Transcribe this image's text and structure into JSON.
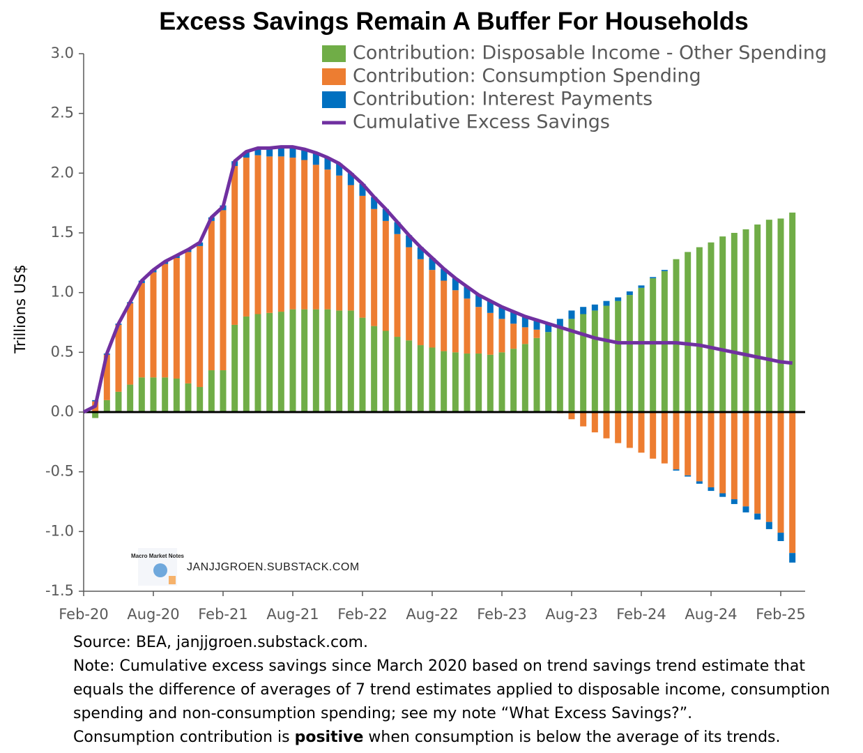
{
  "chart_data": {
    "type": "bar",
    "stacked": true,
    "title": "Excess Savings Remain A Buffer For Households",
    "y_label": "Trillions US$",
    "watermark": "JANJJGROEN.SUBSTACK.COM",
    "logo_text": "Macro Market Notes",
    "categories": [
      "Feb-20",
      null,
      null,
      null,
      null,
      null,
      "Aug-20",
      null,
      null,
      null,
      null,
      null,
      "Feb-21",
      null,
      null,
      null,
      null,
      null,
      "Aug-21",
      null,
      null,
      null,
      null,
      null,
      "Feb-22",
      null,
      null,
      null,
      null,
      null,
      "Aug-22",
      null,
      null,
      null,
      null,
      null,
      "Feb-23",
      null,
      null,
      null,
      null,
      null,
      "Aug-23",
      null,
      null,
      null,
      null,
      null,
      "Feb-24",
      null,
      null,
      null,
      null,
      null,
      "Aug-24",
      null,
      null,
      null,
      null,
      null,
      "Feb-25",
      null
    ],
    "series": [
      {
        "name": "Contribution: Disposable Income - Other Spending",
        "type": "bar",
        "color": "#70ad47",
        "values": [
          0,
          -0.05,
          0.1,
          0.17,
          0.23,
          0.29,
          0.29,
          0.29,
          0.28,
          0.24,
          0.21,
          0.35,
          0.35,
          0.73,
          0.8,
          0.82,
          0.83,
          0.84,
          0.86,
          0.86,
          0.86,
          0.86,
          0.85,
          0.85,
          0.79,
          0.72,
          0.68,
          0.63,
          0.6,
          0.56,
          0.54,
          0.51,
          0.5,
          0.49,
          0.49,
          0.48,
          0.5,
          0.53,
          0.57,
          0.62,
          0.67,
          0.71,
          0.78,
          0.82,
          0.85,
          0.89,
          0.93,
          0.98,
          1.04,
          1.12,
          1.18,
          1.28,
          1.34,
          1.38,
          1.42,
          1.47,
          1.5,
          1.53,
          1.57,
          1.61,
          1.62,
          1.67
        ]
      },
      {
        "name": "Contribution: Consumption Spending",
        "type": "bar",
        "color": "#ed7d31",
        "values": [
          0,
          0.09,
          0.38,
          0.56,
          0.68,
          0.79,
          0.88,
          0.95,
          1.01,
          1.1,
          1.18,
          1.25,
          1.34,
          1.33,
          1.33,
          1.33,
          1.31,
          1.3,
          1.27,
          1.25,
          1.21,
          1.17,
          1.13,
          1.05,
          1.02,
          0.98,
          0.92,
          0.86,
          0.78,
          0.72,
          0.65,
          0.59,
          0.52,
          0.46,
          0.39,
          0.35,
          0.28,
          0.21,
          0.14,
          0.07,
          0,
          -0.01,
          -0.06,
          -0.12,
          -0.17,
          -0.22,
          -0.26,
          -0.3,
          -0.34,
          -0.39,
          -0.43,
          -0.48,
          -0.53,
          -0.58,
          -0.63,
          -0.68,
          -0.73,
          -0.79,
          -0.85,
          -0.92,
          -1.01,
          -1.18
        ]
      },
      {
        "name": "Contribution: Interest Payments",
        "type": "bar",
        "color": "#0070c0",
        "values": [
          0,
          0.01,
          0.01,
          0.01,
          0.01,
          0.02,
          0.02,
          0.02,
          0.02,
          0.02,
          0.03,
          0.03,
          0.04,
          0.04,
          0.05,
          0.06,
          0.07,
          0.08,
          0.09,
          0.09,
          0.1,
          0.1,
          0.1,
          0.1,
          0.1,
          0.1,
          0.1,
          0.1,
          0.1,
          0.1,
          0.1,
          0.1,
          0.1,
          0.1,
          0.1,
          0.1,
          0.1,
          0.1,
          0.09,
          0.08,
          0.07,
          0.07,
          0.07,
          0.06,
          0.05,
          0.04,
          0.03,
          0.03,
          0.02,
          0.01,
          0.01,
          -0.01,
          -0.01,
          -0.02,
          -0.03,
          -0.03,
          -0.04,
          -0.05,
          -0.05,
          -0.06,
          -0.07,
          -0.08
        ]
      },
      {
        "name": "Cumulative Excess Savings",
        "type": "line",
        "color": "#7030a0",
        "values": [
          0,
          0.05,
          0.49,
          0.74,
          0.92,
          1.1,
          1.19,
          1.26,
          1.31,
          1.36,
          1.42,
          1.63,
          1.72,
          2.1,
          2.18,
          2.21,
          2.21,
          2.22,
          2.22,
          2.2,
          2.17,
          2.13,
          2.08,
          2.0,
          1.91,
          1.8,
          1.7,
          1.59,
          1.48,
          1.38,
          1.29,
          1.2,
          1.12,
          1.05,
          0.98,
          0.93,
          0.88,
          0.84,
          0.8,
          0.77,
          0.74,
          0.71,
          0.68,
          0.65,
          0.62,
          0.6,
          0.58,
          0.58,
          0.58,
          0.58,
          0.58,
          0.58,
          0.57,
          0.56,
          0.54,
          0.52,
          0.5,
          0.48,
          0.46,
          0.44,
          0.42,
          0.41
        ]
      }
    ],
    "ylim": [
      -1.5,
      3.0
    ],
    "yticks": [
      {
        "value": 3,
        "label": "3.0"
      },
      2.5,
      {
        "value": 2,
        "label": "2.0"
      },
      1.5,
      {
        "value": 1,
        "label": "1.0"
      },
      0.5,
      {
        "value": 0,
        "label": "0.0"
      },
      -0.5,
      {
        "value": -1,
        "label": "-1.0"
      },
      -1.5
    ],
    "grid": false,
    "legend": "top-right"
  },
  "footer": {
    "source": "Source: BEA, janjjgroen.substack.com.",
    "note_lines": [
      "Note: Cumulative excess savings since March 2020 based on trend savings trend estimate that",
      "equals the difference of averages of 7 trend estimates applied to disposable income, consumption",
      "spending and non-consumption spending; see my note “What Excess Savings?”."
    ],
    "emphasis_line": [
      "Consumption contribution is ",
      "positive",
      " when consumption is below the average of its trends."
    ]
  }
}
